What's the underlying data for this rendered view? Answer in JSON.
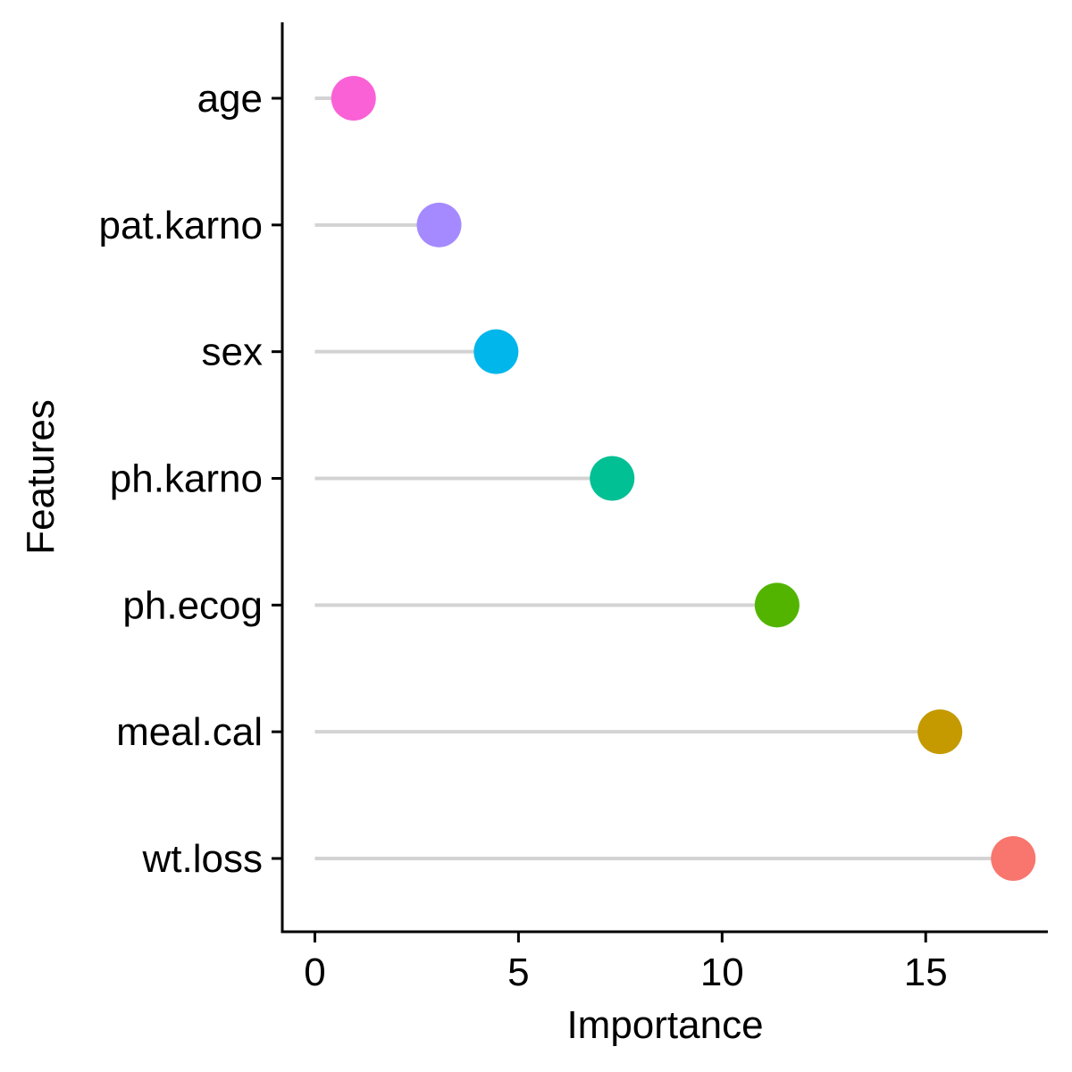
{
  "chart_data": {
    "type": "lollipop",
    "xlabel": "Importance",
    "ylabel": "Features",
    "xlim": [
      -0.8,
      18
    ],
    "x_ticks": [
      0,
      5,
      10,
      15
    ],
    "x_tick_labels": [
      "0",
      "5",
      "10",
      "15"
    ],
    "grid": false,
    "legend": "none",
    "segment_color": "#d3d3d3",
    "features": [
      {
        "name": "age",
        "value": 0.95,
        "color": "#fb61d7"
      },
      {
        "name": "pat.karno",
        "value": 3.05,
        "color": "#a58aff"
      },
      {
        "name": "sex",
        "value": 4.45,
        "color": "#00b6eb"
      },
      {
        "name": "ph.karno",
        "value": 7.3,
        "color": "#00c094"
      },
      {
        "name": "ph.ecog",
        "value": 11.35,
        "color": "#53b400"
      },
      {
        "name": "meal.cal",
        "value": 15.35,
        "color": "#c49a00"
      },
      {
        "name": "wt.loss",
        "value": 17.15,
        "color": "#f8766d"
      }
    ]
  }
}
